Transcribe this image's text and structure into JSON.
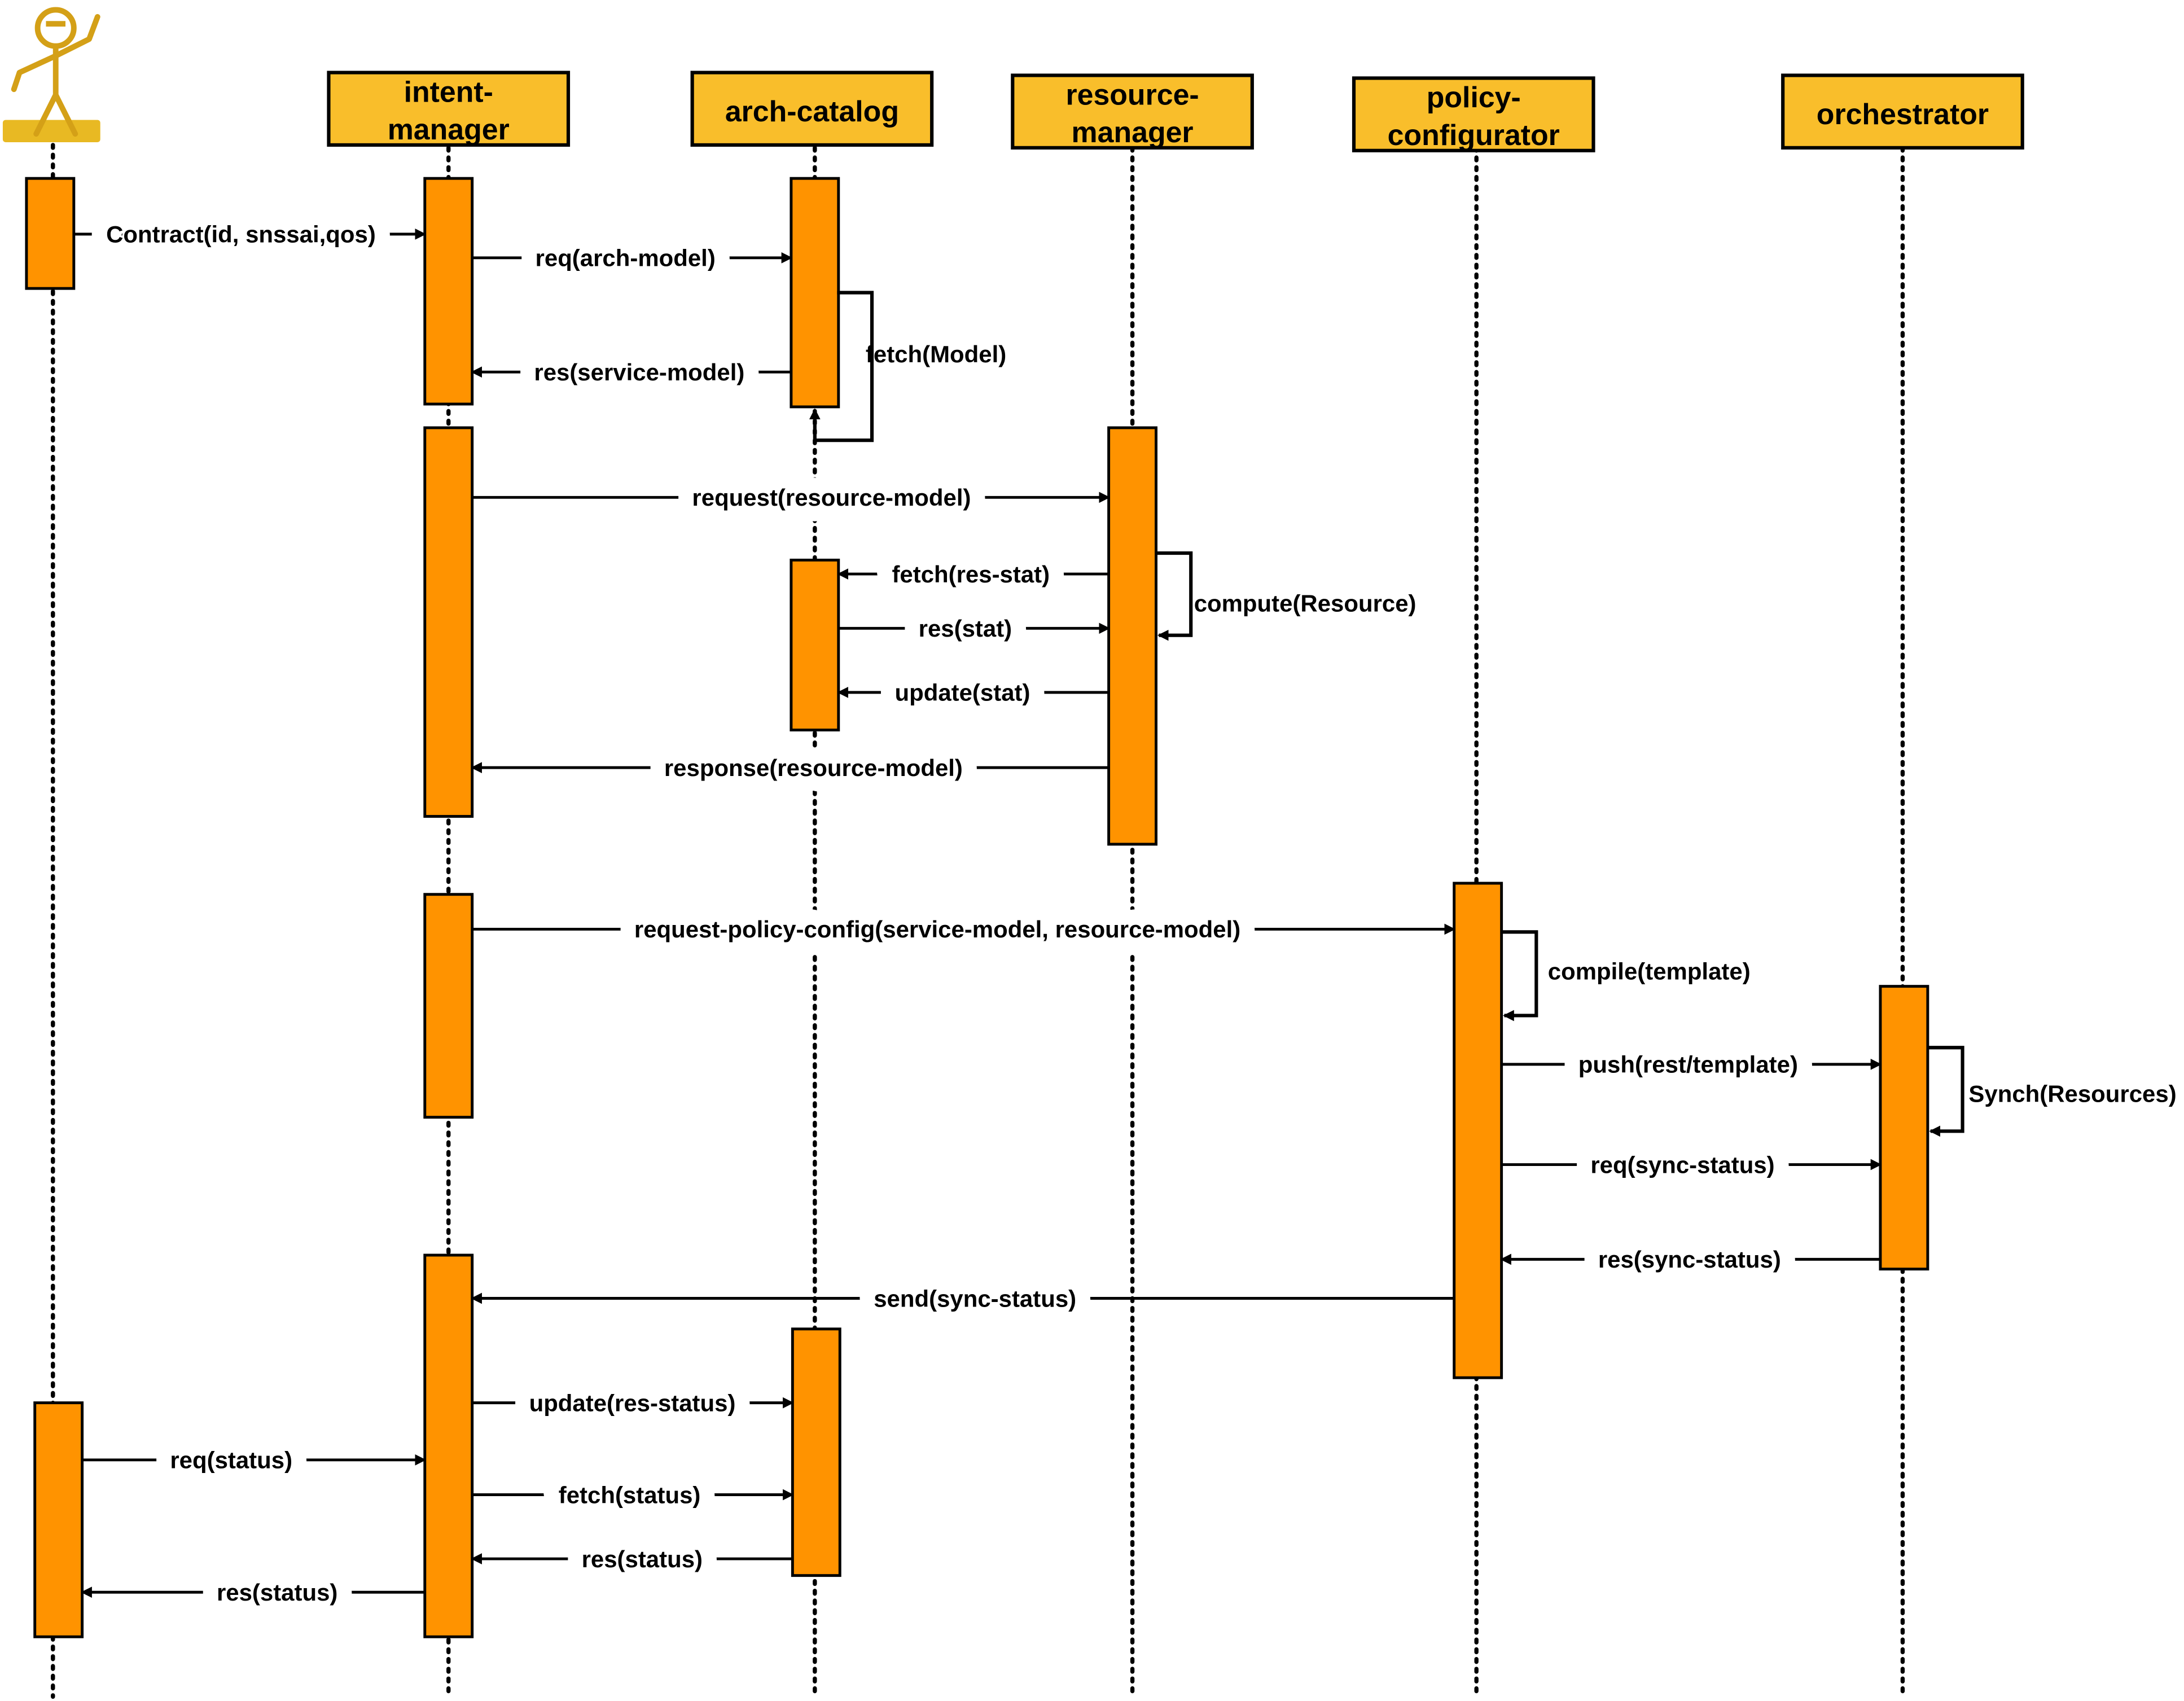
{
  "colors": {
    "header_fill": "#F9BE2B",
    "activation_fill": "#FF9300",
    "line": "#000000",
    "actor": "#D4A017"
  },
  "actor": {
    "icon": "gingerbread-user-actor-icon"
  },
  "participants": [
    {
      "id": "intent",
      "lines": [
        "intent-",
        "manager"
      ]
    },
    {
      "id": "arch",
      "lines": [
        "arch-catalog"
      ]
    },
    {
      "id": "resource",
      "lines": [
        "resource-",
        "manager"
      ]
    },
    {
      "id": "policy",
      "lines": [
        "policy-",
        "configurator"
      ]
    },
    {
      "id": "orch",
      "lines": [
        "orchestrator"
      ]
    }
  ],
  "messages": [
    {
      "label": "Contract(id, snssai,qos)",
      "from": "user",
      "to": "intent"
    },
    {
      "label": "req(arch-model)",
      "from": "intent",
      "to": "arch"
    },
    {
      "label": "res(service-model)",
      "from": "arch",
      "to": "intent"
    },
    {
      "label": "fetch(Model)",
      "from": "arch",
      "to": "arch"
    },
    {
      "label": "request(resource-model)",
      "from": "intent",
      "to": "resource"
    },
    {
      "label": "fetch(res-stat)",
      "from": "resource",
      "to": "arch"
    },
    {
      "label": "res(stat)",
      "from": "arch",
      "to": "resource"
    },
    {
      "label": "update(stat)",
      "from": "resource",
      "to": "arch"
    },
    {
      "label": "compute(Resource)",
      "from": "resource",
      "to": "resource"
    },
    {
      "label": "response(resource-model)",
      "from": "resource",
      "to": "intent"
    },
    {
      "label": "request-policy-config(service-model, resource-model)",
      "from": "intent",
      "to": "policy"
    },
    {
      "label": "compile(template)",
      "from": "policy",
      "to": "policy"
    },
    {
      "label": "push(rest/template)",
      "from": "policy",
      "to": "orch"
    },
    {
      "label": "Synch(Resources)",
      "from": "orch",
      "to": "orch"
    },
    {
      "label": "req(sync-status)",
      "from": "policy",
      "to": "orch"
    },
    {
      "label": "res(sync-status)",
      "from": "orch",
      "to": "policy"
    },
    {
      "label": "send(sync-status)",
      "from": "policy",
      "to": "intent"
    },
    {
      "label": "update(res-status)",
      "from": "intent",
      "to": "arch"
    },
    {
      "label": "req(status)",
      "from": "user",
      "to": "intent"
    },
    {
      "label": "fetch(status)",
      "from": "intent",
      "to": "arch"
    },
    {
      "label": "res(status)",
      "from": "arch",
      "to": "intent"
    },
    {
      "label": "res(status)",
      "from": "intent",
      "to": "user"
    }
  ]
}
